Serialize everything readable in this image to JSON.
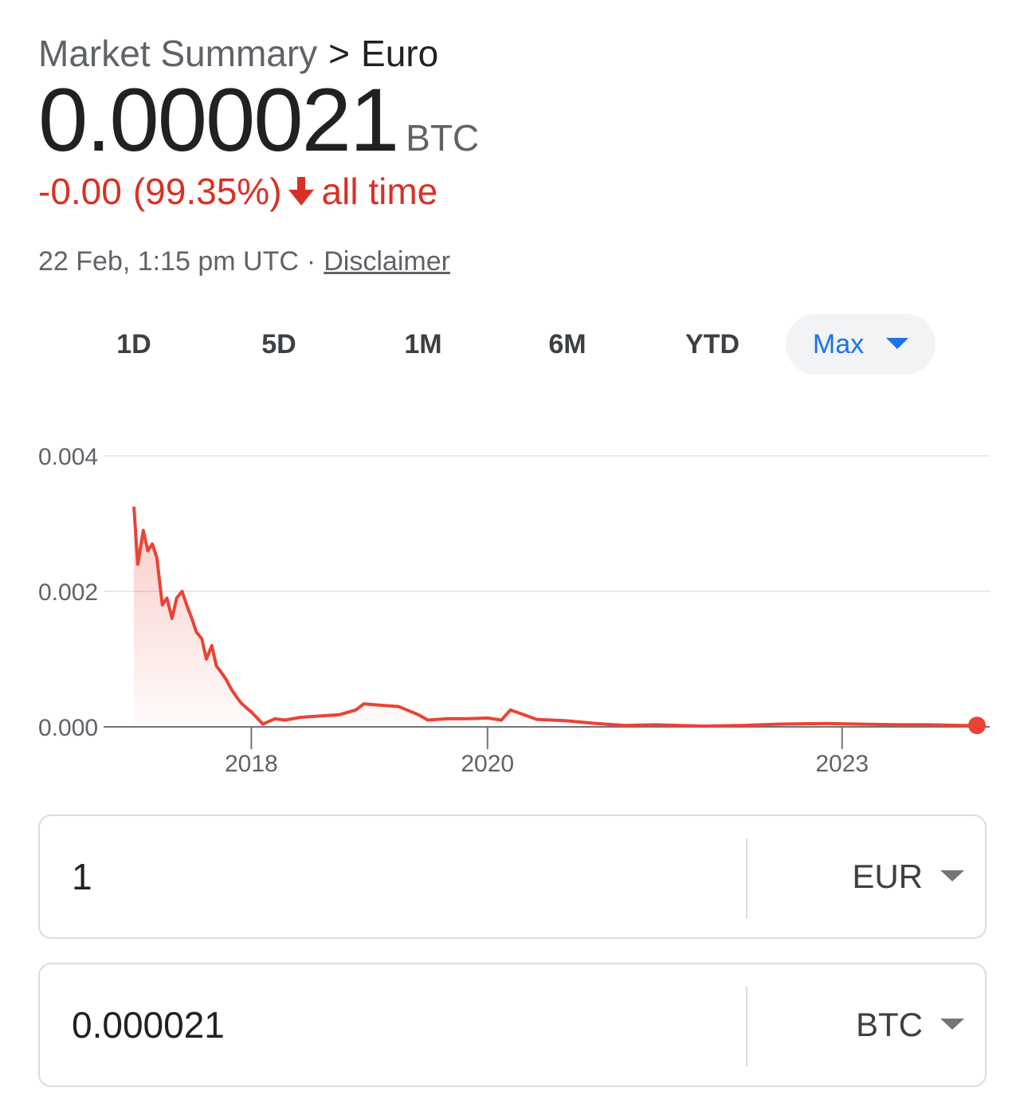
{
  "breadcrumb": {
    "root": "Market Summary",
    "separator": ">",
    "current": "Euro"
  },
  "price": {
    "value": "0.000021",
    "unit": "BTC"
  },
  "change": {
    "amount": "-0.00",
    "percent": "(99.35%)",
    "direction": "down",
    "period": "all time",
    "color": "#d93025"
  },
  "timestamp": {
    "text": "22 Feb, 1:15 pm UTC",
    "separator": "·",
    "disclaimer": "Disclaimer"
  },
  "range_tabs": {
    "items": [
      "1D",
      "5D",
      "1M",
      "6M",
      "YTD",
      "Max"
    ],
    "selected": "Max",
    "accent": "#1a73e8"
  },
  "chart_data": {
    "type": "area",
    "title": "",
    "xlabel": "",
    "ylabel": "",
    "x_tick_labels": [
      "2018",
      "2020",
      "2023"
    ],
    "y_tick_labels": [
      "0.004",
      "0.002",
      "0.000"
    ],
    "ylim": [
      0,
      0.004
    ],
    "xlim": [
      "2017-01-03",
      "2024-02-22"
    ],
    "grid": "horizontal",
    "line_color": "#ea4335",
    "series": [
      {
        "x": [
          "2017-01-03",
          "2017-01-15",
          "2017-02-01",
          "2017-02-15",
          "2017-03-01",
          "2017-03-15",
          "2017-04-01",
          "2017-04-15",
          "2017-05-01",
          "2017-05-15",
          "2017-06-01",
          "2017-06-15",
          "2017-07-01",
          "2017-07-15",
          "2017-08-01",
          "2017-08-15",
          "2017-09-01",
          "2017-09-15",
          "2017-10-01",
          "2017-10-15",
          "2017-11-01",
          "2017-11-15",
          "2017-12-01",
          "2017-12-17",
          "2018-01-01",
          "2018-02-06",
          "2018-03-15",
          "2018-04-15",
          "2018-06-01",
          "2018-08-01",
          "2018-10-01",
          "2018-11-20",
          "2018-12-15",
          "2019-02-01",
          "2019-04-01",
          "2019-06-01",
          "2019-07-01",
          "2019-09-01",
          "2019-11-01",
          "2020-01-01",
          "2020-02-13",
          "2020-03-12",
          "2020-06-01",
          "2020-09-01",
          "2020-12-01",
          "2021-03-01",
          "2021-06-01",
          "2021-11-01",
          "2022-03-01",
          "2022-06-18",
          "2022-11-10",
          "2023-03-01",
          "2023-07-01",
          "2023-10-01",
          "2024-01-01",
          "2024-02-22"
        ],
        "values": [
          0.00325,
          0.0024,
          0.0029,
          0.0026,
          0.0027,
          0.0025,
          0.0018,
          0.0019,
          0.0016,
          0.0019,
          0.002,
          0.0018,
          0.0016,
          0.0014,
          0.0013,
          0.001,
          0.0012,
          0.0009,
          0.0008,
          0.0007,
          0.00055,
          0.00045,
          0.00035,
          0.00028,
          0.00022,
          4e-05,
          0.00012,
          0.0001,
          0.00014,
          0.00016,
          0.00018,
          0.00025,
          0.00034,
          0.00032,
          0.0003,
          0.00018,
          0.0001,
          0.00012,
          0.00012,
          0.00013,
          0.0001,
          0.00025,
          0.00011,
          9e-05,
          5e-05,
          2e-05,
          3e-05,
          1e-05,
          2e-05,
          4e-05,
          5e-05,
          4e-05,
          3e-05,
          3e-05,
          2e-05,
          2.1e-05
        ]
      }
    ]
  },
  "converter": {
    "from": {
      "amount": "1",
      "currency": "EUR"
    },
    "to": {
      "amount": "0.000021",
      "currency": "BTC"
    }
  }
}
